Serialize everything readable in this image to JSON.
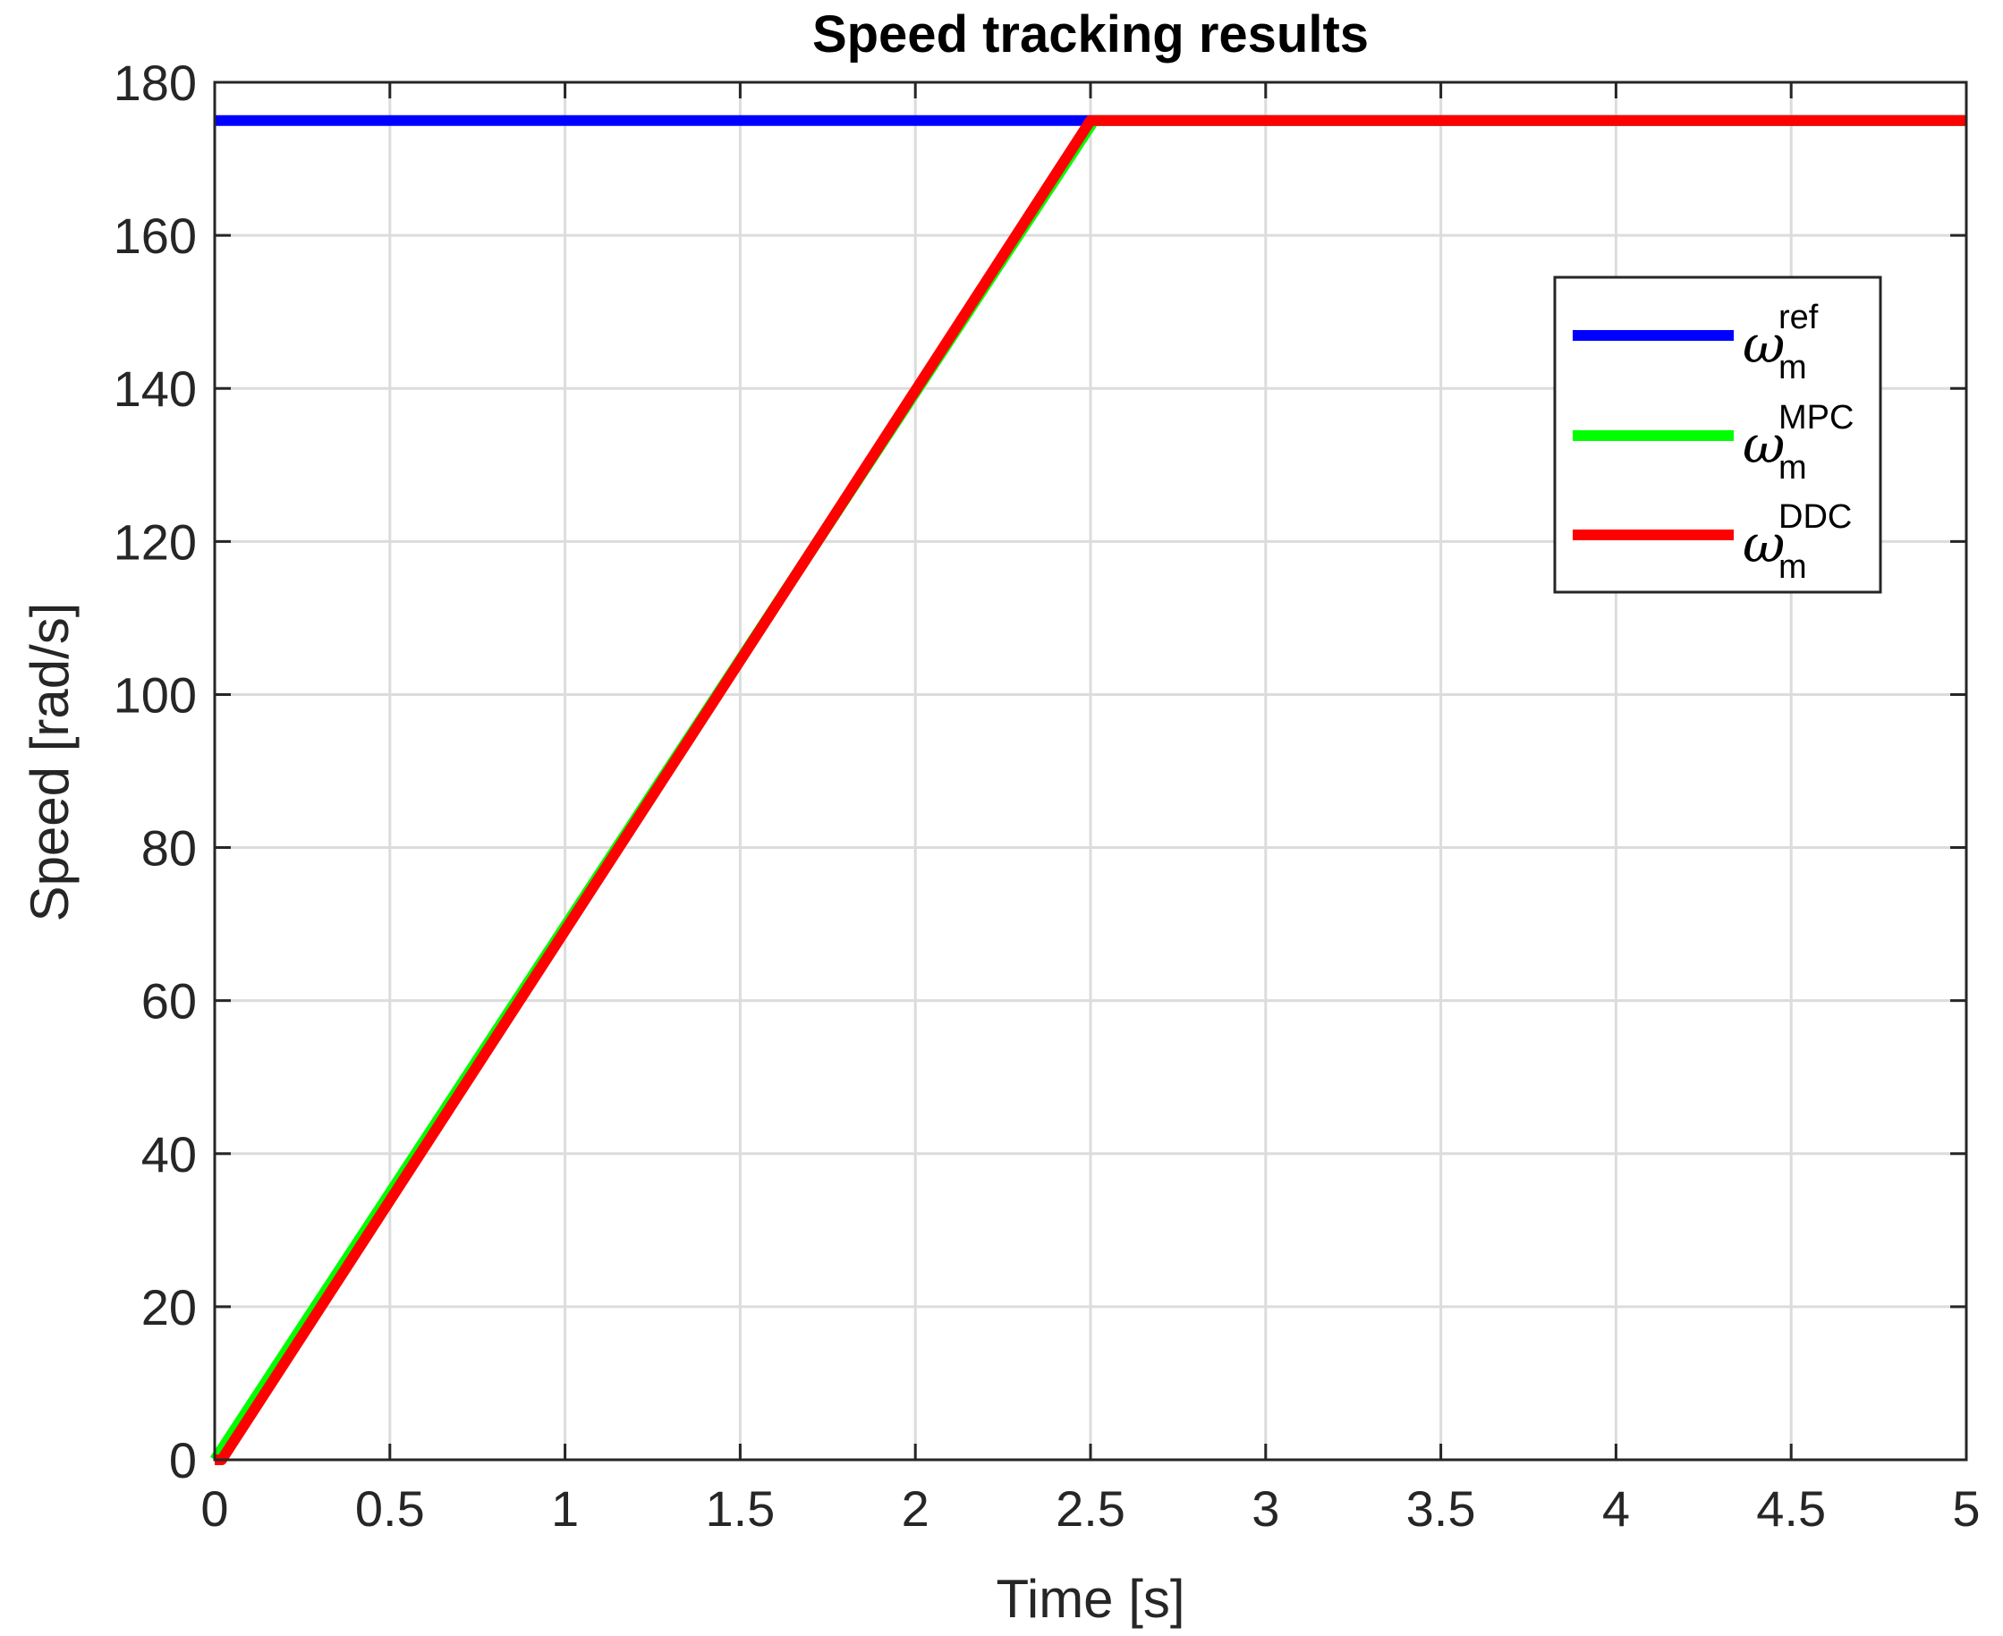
{
  "chart_data": {
    "type": "line",
    "title": "Speed tracking results",
    "xlabel": "Time [s]",
    "ylabel": "Speed [rad/s]",
    "xlim": [
      0,
      5
    ],
    "ylim": [
      0,
      180
    ],
    "xticks": [
      0,
      0.5,
      1,
      1.5,
      2,
      2.5,
      3,
      3.5,
      4,
      4.5,
      5
    ],
    "xtick_labels": [
      "0",
      "0.5",
      "1",
      "1.5",
      "2",
      "2.5",
      "3",
      "3.5",
      "4",
      "4.5",
      "5"
    ],
    "yticks": [
      0,
      20,
      40,
      60,
      80,
      100,
      120,
      140,
      160,
      180
    ],
    "ytick_labels": [
      "0",
      "20",
      "40",
      "60",
      "80",
      "100",
      "120",
      "140",
      "160",
      "180"
    ],
    "grid": true,
    "legend_position": "top-right",
    "series": [
      {
        "name": "ω_m^ref",
        "legend_symbol": "ω",
        "legend_sub": "m",
        "legend_sup": "ref",
        "color": "#0000ff",
        "x": [
          0,
          5
        ],
        "y": [
          175,
          175
        ]
      },
      {
        "name": "ω_m^MPC",
        "legend_symbol": "ω",
        "legend_sub": "m",
        "legend_sup": "MPC",
        "color": "#00ff00",
        "x": [
          0,
          0.1,
          2.51,
          5
        ],
        "y": [
          0,
          7,
          175,
          175
        ]
      },
      {
        "name": "ω_m^DDC",
        "legend_symbol": "ω",
        "legend_sub": "m",
        "legend_sup": "DDC",
        "color": "#ff0000",
        "x": [
          0,
          0.02,
          2.5,
          5
        ],
        "y": [
          0,
          0,
          175,
          175
        ]
      }
    ]
  }
}
